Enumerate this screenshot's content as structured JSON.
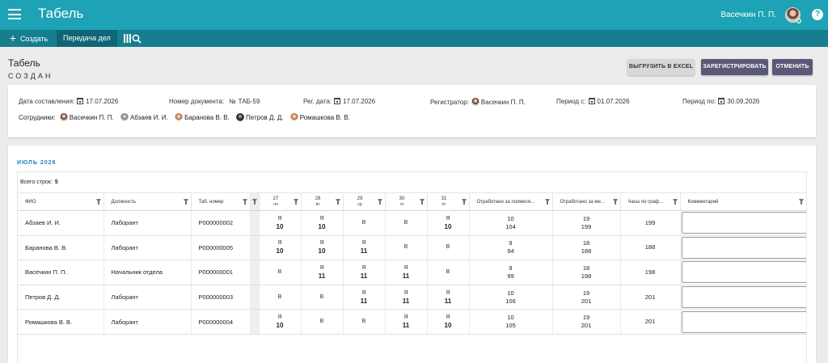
{
  "header": {
    "title": "Табель",
    "user": "Васечкин П. П.",
    "help": "?"
  },
  "toolbar": {
    "create_label": "Создать",
    "transfer_label": "Передача дел"
  },
  "page": {
    "title": "Табель",
    "status": "СОЗДАН"
  },
  "actions": {
    "excel": "ВЫГРУЗИТЬ В EXCEL",
    "register": "ЗАРЕГИСТРИРОВАТЬ",
    "cancel": "ОТМЕНИТЬ"
  },
  "info": {
    "date_label": "Дата составления:",
    "date_value": "17.07.2026",
    "docnum_label": "Номер документа:",
    "docnum_symbol": "№",
    "docnum_value": "ТАБ-59",
    "regdate_label": "Рег. дата:",
    "regdate_value": "17.07.2026",
    "registrar_label": "Регистратор:",
    "registrar_value": "Васечкин П. П.",
    "period_from_label": "Период с:",
    "period_from_value": "01.07.2026",
    "period_to_label": "Период по:",
    "period_to_value": "30.09.2026",
    "employees_label": "Сотрудники:",
    "employees": [
      "Васечкин П. П.",
      "Абзаев И. И.",
      "Баранова В. В.",
      "Петров Д. Д.",
      "Ромашкова В. В."
    ]
  },
  "table": {
    "month": "ИЮЛЬ 2026",
    "total_label": "Всего строк:",
    "total_value": "5",
    "columns": {
      "fio": "ФИО",
      "position": "Должность",
      "tabnum": "Таб. номер",
      "days": [
        {
          "n": "27",
          "w": "пн"
        },
        {
          "n": "28",
          "w": "вт"
        },
        {
          "n": "29",
          "w": "ср"
        },
        {
          "n": "30",
          "w": "чт"
        },
        {
          "n": "31",
          "w": "пт"
        }
      ],
      "half": "Отработано за полмеся...",
      "month": "Отработано за ме...",
      "sched": "Часы по граф...",
      "comment": "Комментарий"
    },
    "rows": [
      {
        "fio": "Абзаев И. И.",
        "position": "Лаборант",
        "tabnum": "P000000002",
        "days": [
          [
            "Я",
            "10"
          ],
          [
            "Я",
            "10"
          ],
          [
            "В",
            ""
          ],
          [
            "В",
            ""
          ],
          [
            "Я",
            "10"
          ]
        ],
        "half": [
          "10",
          "104"
        ],
        "month": [
          "19",
          "199"
        ],
        "sched": "199"
      },
      {
        "fio": "Баранова В. В.",
        "position": "Лаборант",
        "tabnum": "P000000005",
        "days": [
          [
            "Я",
            "10"
          ],
          [
            "Я",
            "10"
          ],
          [
            "Я",
            "11"
          ],
          [
            "В",
            ""
          ],
          [
            "В",
            ""
          ]
        ],
        "half": [
          "9",
          "94"
        ],
        "month": [
          "18",
          "188"
        ],
        "sched": "188"
      },
      {
        "fio": "Васечкин П. П.",
        "position": "Начальник отдела",
        "tabnum": "P000000001",
        "days": [
          [
            "В",
            ""
          ],
          [
            "Я",
            "11"
          ],
          [
            "Я",
            "11"
          ],
          [
            "Я",
            "11"
          ],
          [
            "В",
            ""
          ]
        ],
        "half": [
          "9",
          "99"
        ],
        "month": [
          "18",
          "198"
        ],
        "sched": "198"
      },
      {
        "fio": "Петров Д. Д.",
        "position": "Лаборант",
        "tabnum": "P000000003",
        "days": [
          [
            "В",
            ""
          ],
          [
            "В",
            ""
          ],
          [
            "Я",
            "11"
          ],
          [
            "Я",
            "11"
          ],
          [
            "Я",
            "11"
          ]
        ],
        "half": [
          "10",
          "106"
        ],
        "month": [
          "19",
          "201"
        ],
        "sched": "201"
      },
      {
        "fio": "Ромашкова В. В.",
        "position": "Лаборант",
        "tabnum": "P000000004",
        "days": [
          [
            "Я",
            "10"
          ],
          [
            "В",
            ""
          ],
          [
            "В",
            ""
          ],
          [
            "Я",
            "11"
          ],
          [
            "Я",
            "10"
          ]
        ],
        "half": [
          "10",
          "105"
        ],
        "month": [
          "19",
          "201"
        ],
        "sched": "201"
      }
    ]
  }
}
